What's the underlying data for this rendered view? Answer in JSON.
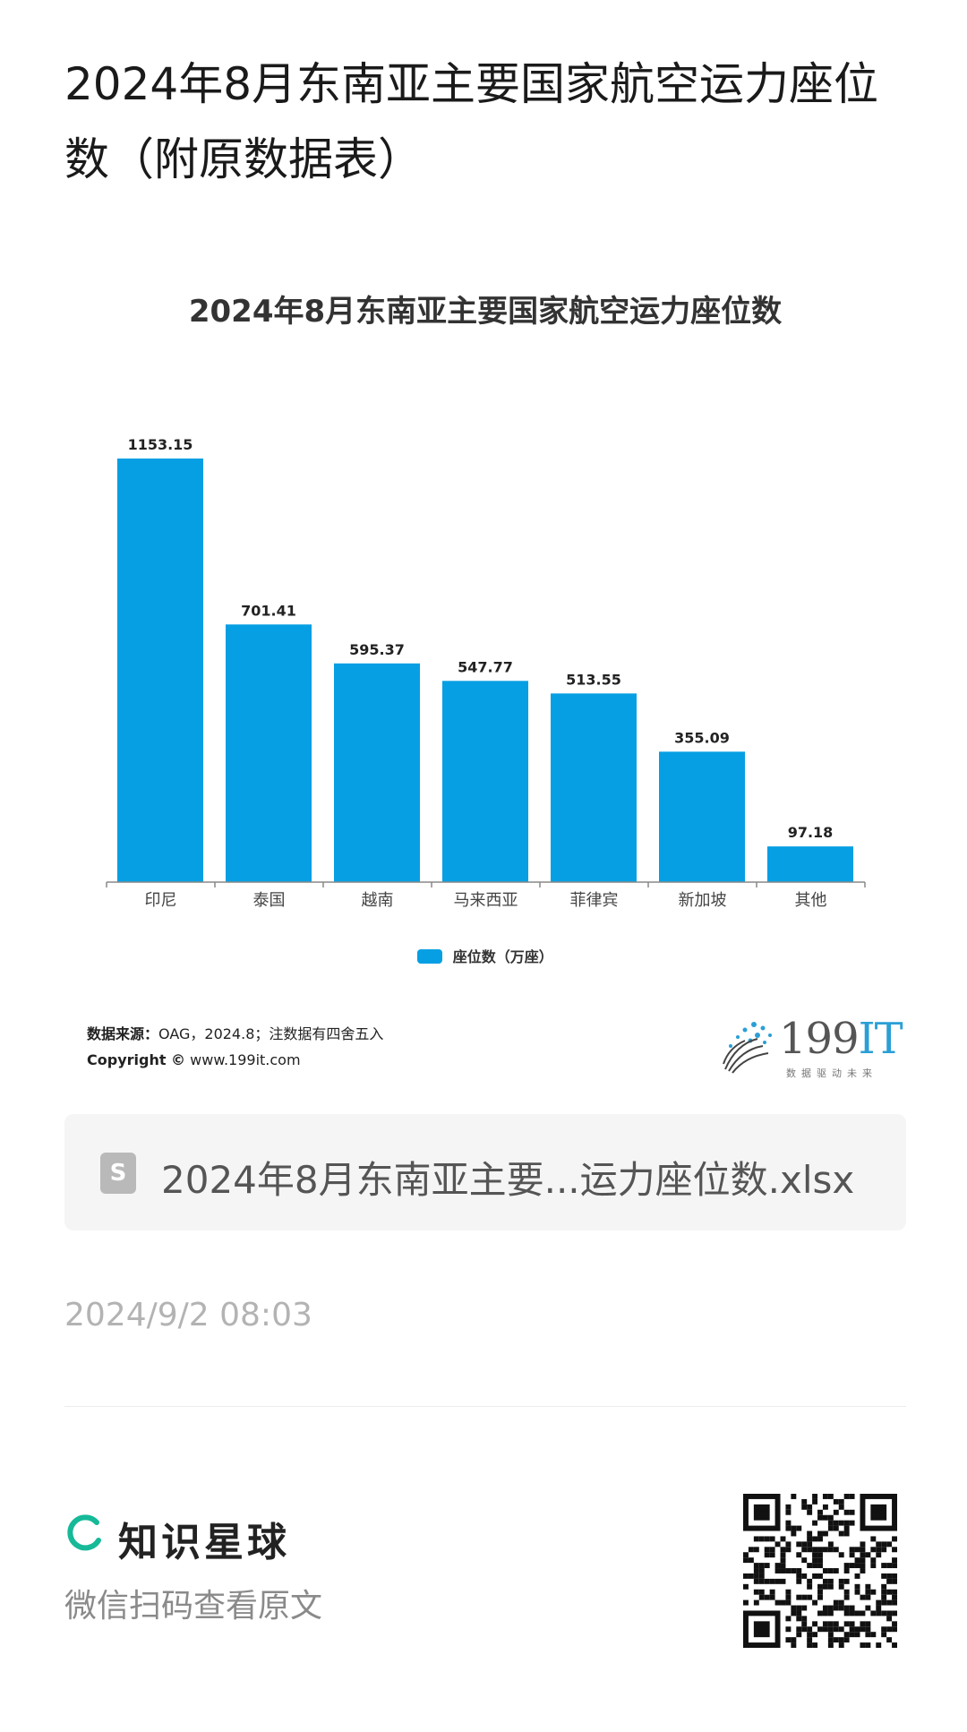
{
  "article": {
    "title": "2024年8月东南亚主要国家航空运力座位数（附原数据表）"
  },
  "chart_data": {
    "type": "bar",
    "title": "2024年8月东南亚主要国家航空运力座位数",
    "categories": [
      "印尼",
      "泰国",
      "越南",
      "马来西亚",
      "菲律宾",
      "新加坡",
      "其他"
    ],
    "series": [
      {
        "name": "座位数（万座）",
        "values": [
          1153.15,
          701.41,
          595.37,
          547.77,
          513.55,
          355.09,
          97.18
        ],
        "color": "#069fe3"
      }
    ],
    "value_labels": [
      "1153.15",
      "701.41",
      "595.37",
      "547.77",
      "513.55",
      "355.09",
      "97.18"
    ],
    "ylim": [
      0,
      1153.15
    ],
    "grid": false,
    "legend_position": "bottom"
  },
  "source": {
    "label": "数据来源：",
    "text": "OAG，2024.8；注数据有四舍五入",
    "copyright_label": "Copyright ©",
    "website": "www.199it.com"
  },
  "logo": {
    "number": "199",
    "it": "IT",
    "slogan": "数据驱动未来"
  },
  "attachment": {
    "icon_letter": "S",
    "file_name": "2024年8月东南亚主要...运力座位数.xlsx"
  },
  "post": {
    "date": "2024/9/2 08:03"
  },
  "footer": {
    "brand_name": "知识星球",
    "hint": "微信扫码查看原文",
    "brand_color": "#16b998"
  }
}
